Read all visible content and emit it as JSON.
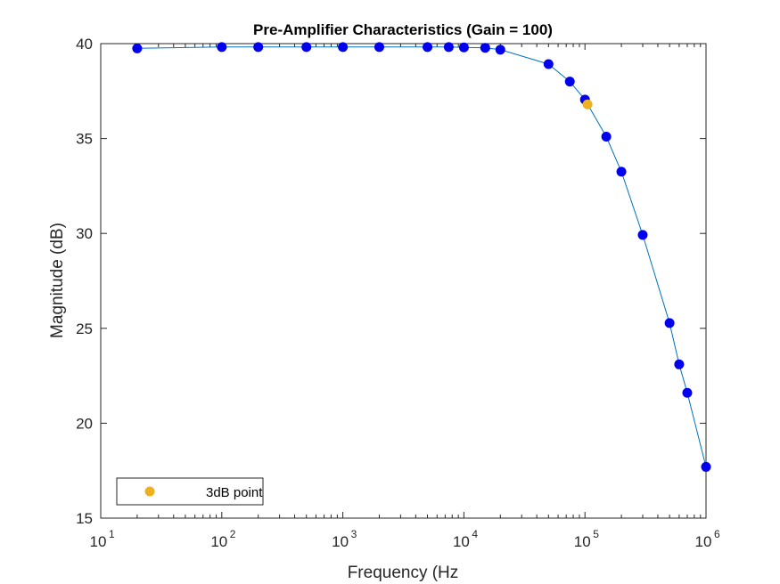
{
  "chart_data": {
    "type": "line",
    "title": "Pre-Amplifier Characteristics (Gain = 100)",
    "xlabel": "Frequency (Hz",
    "ylabel": "Magnitude (dB)",
    "xscale": "log",
    "xlim": [
      10,
      1000000
    ],
    "ylim": [
      15,
      40
    ],
    "x_ticks": [
      {
        "base": "10",
        "exp": "1"
      },
      {
        "base": "10",
        "exp": "2"
      },
      {
        "base": "10",
        "exp": "3"
      },
      {
        "base": "10",
        "exp": "4"
      },
      {
        "base": "10",
        "exp": "5"
      },
      {
        "base": "10",
        "exp": "6"
      }
    ],
    "x_tick_values": [
      10,
      100,
      1000,
      10000,
      100000,
      1000000
    ],
    "y_ticks": [
      "15",
      "20",
      "25",
      "30",
      "35",
      "40"
    ],
    "y_tick_values": [
      15,
      20,
      25,
      30,
      35,
      40
    ],
    "grid": false,
    "legend_position": "bottom-left",
    "series": [
      {
        "kind": "line-with-markers",
        "line_color": "#0072BD",
        "marker_color": "#0000EE",
        "points": [
          [
            20,
            39.75
          ],
          [
            100,
            39.82
          ],
          [
            200,
            39.82
          ],
          [
            500,
            39.82
          ],
          [
            1000,
            39.82
          ],
          [
            2000,
            39.82
          ],
          [
            5000,
            39.82
          ],
          [
            7500,
            39.82
          ],
          [
            10000,
            39.8
          ],
          [
            15000,
            39.78
          ],
          [
            20000,
            39.68
          ],
          [
            50000,
            38.92
          ],
          [
            75000,
            38.0
          ],
          [
            100000,
            37.05
          ],
          [
            150000,
            35.1
          ],
          [
            200000,
            33.25
          ],
          [
            300000,
            29.92
          ],
          [
            500000,
            25.28
          ],
          [
            600000,
            23.1
          ],
          [
            700000,
            21.6
          ],
          [
            1000000,
            17.7
          ]
        ]
      },
      {
        "name": "3dB point",
        "kind": "marker",
        "marker_color": "#EDB120",
        "points": [
          [
            105000,
            36.8
          ]
        ]
      }
    ]
  }
}
